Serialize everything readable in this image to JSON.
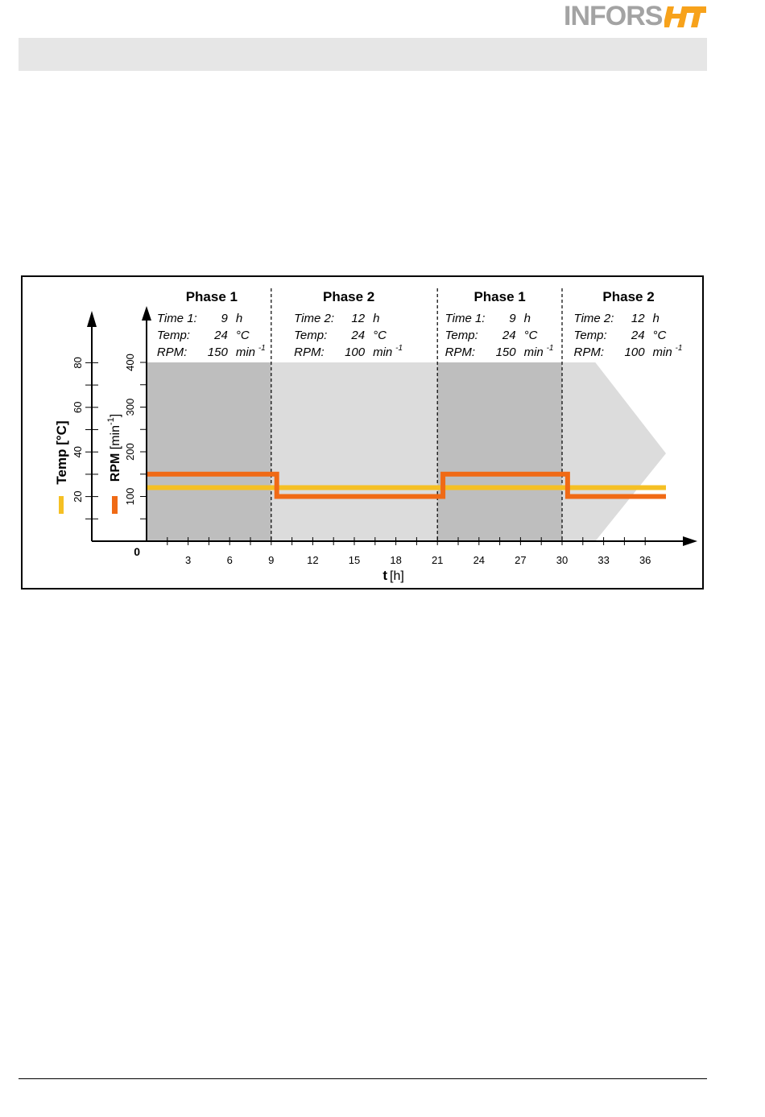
{
  "header": {
    "logo_text": "INFORS",
    "logo_mark": "HT",
    "logo_color": "#a3a3a3",
    "logo_accent": "#f7a21b"
  },
  "chart_data": {
    "type": "line",
    "xlabel_bold": "t",
    "xlabel_unit": "[h]",
    "xticks": [
      3,
      6,
      9,
      12,
      15,
      18,
      21,
      24,
      27,
      30,
      33,
      36
    ],
    "xlim": [
      0,
      36
    ],
    "origin_label": "0",
    "temp_axis": {
      "label": "Temp [°C]",
      "ticks": [
        20,
        40,
        60,
        80
      ],
      "ylim": [
        0,
        80
      ]
    },
    "rpm_axis": {
      "label": "RPM [min",
      "label_sup": "-1",
      "label_end": "]",
      "ticks": [
        100,
        200,
        300,
        400
      ],
      "ylim": [
        0,
        400
      ]
    },
    "phases": [
      {
        "title": "Phase 1",
        "start": 0,
        "end": 9,
        "shade": "dark",
        "info": [
          {
            "k": "Time 1:",
            "v": "9",
            "u": "h",
            "sup": ""
          },
          {
            "k": "Temp:",
            "v": "24",
            "u": "°C",
            "sup": ""
          },
          {
            "k": "RPM:",
            "v": "150",
            "u": "min",
            "sup": "-1"
          }
        ]
      },
      {
        "title": "Phase 2",
        "start": 9,
        "end": 21,
        "shade": "light",
        "info": [
          {
            "k": "Time 2:",
            "v": "12",
            "u": "h",
            "sup": ""
          },
          {
            "k": "Temp:",
            "v": "24",
            "u": "°C",
            "sup": ""
          },
          {
            "k": "RPM:",
            "v": "100",
            "u": "min",
            "sup": "-1"
          }
        ]
      },
      {
        "title": "Phase 1",
        "start": 21,
        "end": 30,
        "shade": "dark",
        "info": [
          {
            "k": "Time 1:",
            "v": "9",
            "u": "h",
            "sup": ""
          },
          {
            "k": "Temp:",
            "v": "24",
            "u": "°C",
            "sup": ""
          },
          {
            "k": "RPM:",
            "v": "150",
            "u": "min",
            "sup": "-1"
          }
        ]
      },
      {
        "title": "Phase 2",
        "start": 30,
        "end": 42,
        "shade": "light",
        "info": [
          {
            "k": "Time 2:",
            "v": "12",
            "u": "h",
            "sup": ""
          },
          {
            "k": "Temp:",
            "v": "24",
            "u": "°C",
            "sup": ""
          },
          {
            "k": "RPM:",
            "v": "100",
            "u": "min",
            "sup": "-1"
          }
        ]
      }
    ],
    "series": [
      {
        "name": "Temp [°C]",
        "color": "#f5c024",
        "axis": "temp",
        "points": [
          [
            0,
            24
          ],
          [
            9,
            24
          ],
          [
            21,
            24
          ],
          [
            30,
            24
          ],
          [
            37.5,
            24
          ]
        ]
      },
      {
        "name": "RPM [min-1]",
        "color": "#f06a15",
        "axis": "rpm",
        "points": [
          [
            0,
            150
          ],
          [
            9.4,
            150
          ],
          [
            9.4,
            100
          ],
          [
            21.4,
            100
          ],
          [
            21.4,
            150
          ],
          [
            30.4,
            150
          ],
          [
            30.4,
            100
          ],
          [
            37.5,
            100
          ]
        ]
      }
    ],
    "colors": {
      "dark_shade": "#bebebe",
      "light_shade": "#dcdcdc",
      "divider": "#000000"
    }
  }
}
